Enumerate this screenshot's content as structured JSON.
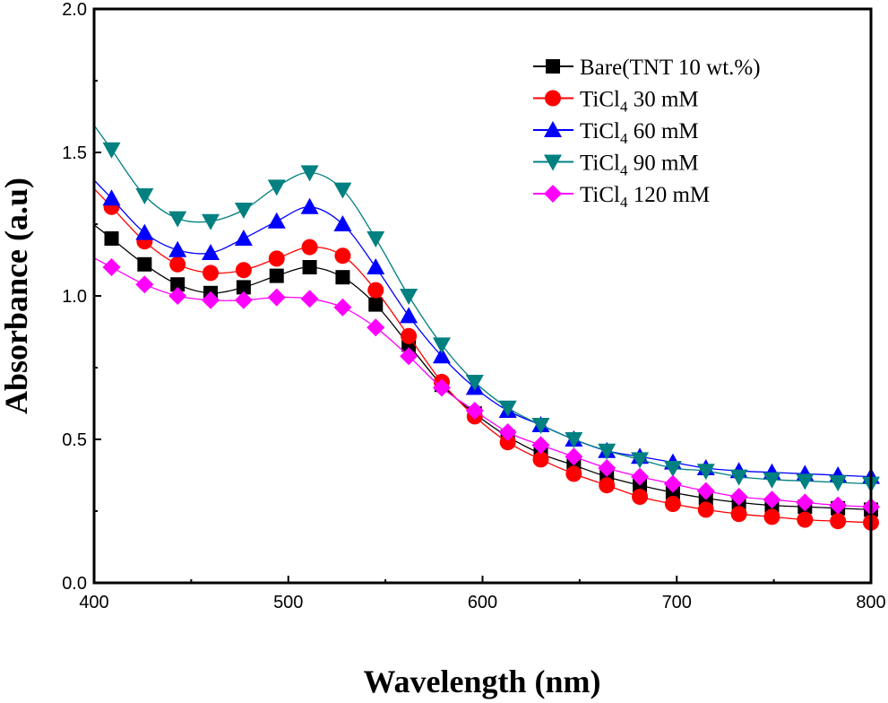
{
  "chart_data": {
    "type": "line",
    "title": "",
    "xlabel": "Wavelength (nm)",
    "ylabel": "Absorbance (a.u)",
    "xlim": [
      400,
      800
    ],
    "ylim": [
      0.0,
      2.0
    ],
    "xticks": [
      "400",
      "500",
      "600",
      "700",
      "800"
    ],
    "yticks": [
      "0.0",
      "0.5",
      "1.0",
      "1.5",
      "2.0"
    ],
    "legend_position": "top-right",
    "grid": false,
    "x": [
      409,
      426,
      443,
      460,
      477,
      494,
      511,
      528,
      545,
      562,
      579,
      596,
      613,
      630,
      647,
      664,
      681,
      698,
      715,
      732,
      749,
      766,
      783,
      800
    ],
    "series": [
      {
        "name": "Bare(TNT 10 wt.%)",
        "legend_main": "Bare(TNT 10 wt.%)",
        "legend_sub": "",
        "legend_tail": "",
        "color": "#000000",
        "marker": "square",
        "values": [
          1.2,
          1.11,
          1.04,
          1.01,
          1.03,
          1.07,
          1.1,
          1.065,
          0.97,
          0.83,
          0.69,
          0.59,
          0.51,
          0.45,
          0.41,
          0.37,
          0.34,
          0.315,
          0.295,
          0.28,
          0.27,
          0.265,
          0.26,
          0.255
        ]
      },
      {
        "name": "TiCl4 30 mM",
        "legend_main": "TiCl",
        "legend_sub": "4",
        "legend_tail": " 30 mM",
        "color": "#ff0000",
        "marker": "circle",
        "values": [
          1.31,
          1.19,
          1.11,
          1.08,
          1.09,
          1.13,
          1.17,
          1.14,
          1.02,
          0.86,
          0.7,
          0.58,
          0.49,
          0.43,
          0.38,
          0.34,
          0.3,
          0.275,
          0.255,
          0.24,
          0.23,
          0.22,
          0.215,
          0.21
        ]
      },
      {
        "name": "TiCl4 60 mM",
        "legend_main": "TiCl",
        "legend_sub": "4",
        "legend_tail": " 60 mM",
        "color": "#0000ff",
        "marker": "triangle-up",
        "values": [
          1.34,
          1.22,
          1.16,
          1.15,
          1.2,
          1.26,
          1.31,
          1.25,
          1.1,
          0.93,
          0.79,
          0.68,
          0.6,
          0.55,
          0.5,
          0.46,
          0.44,
          0.42,
          0.4,
          0.39,
          0.385,
          0.38,
          0.375,
          0.37
        ]
      },
      {
        "name": "TiCl4 90 mM",
        "legend_main": "TiCl",
        "legend_sub": "4",
        "legend_tail": " 90 mM",
        "color": "#008080",
        "marker": "triangle-down",
        "values": [
          1.51,
          1.35,
          1.27,
          1.26,
          1.3,
          1.38,
          1.43,
          1.37,
          1.2,
          1.0,
          0.83,
          0.7,
          0.61,
          0.55,
          0.5,
          0.46,
          0.43,
          0.4,
          0.39,
          0.37,
          0.36,
          0.355,
          0.35,
          0.345
        ]
      },
      {
        "name": "TiCl4 120 mM",
        "legend_main": "TiCl",
        "legend_sub": "4",
        "legend_tail": " 120 mM",
        "color": "#ff00ff",
        "marker": "diamond",
        "values": [
          1.1,
          1.04,
          1.0,
          0.985,
          0.985,
          0.995,
          0.99,
          0.96,
          0.89,
          0.79,
          0.68,
          0.6,
          0.525,
          0.48,
          0.44,
          0.4,
          0.37,
          0.345,
          0.32,
          0.3,
          0.29,
          0.28,
          0.27,
          0.265
        ]
      }
    ]
  }
}
